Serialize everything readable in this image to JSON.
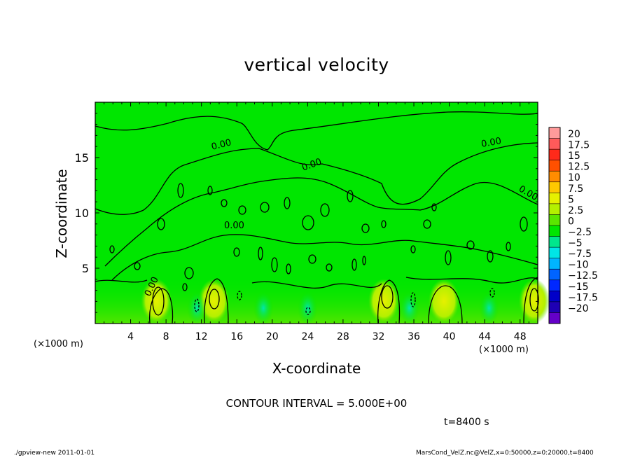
{
  "chart_data": {
    "type": "contour",
    "title": "vertical velocity",
    "xlabel": "X-coordinate",
    "ylabel": "Z-coordinate",
    "x_unit": "(×1000 m)",
    "xlim": [
      0,
      50
    ],
    "ylim": [
      0,
      20
    ],
    "xticks": [
      4,
      8,
      12,
      16,
      20,
      24,
      28,
      32,
      36,
      40,
      44,
      48
    ],
    "yticks": [
      5,
      10,
      15
    ],
    "contour_interval_label": "CONTOUR INTERVAL = 5.000E+00",
    "contour_labels": [
      "0.00",
      "0.00",
      "0.00",
      "0.00",
      "0.00",
      "0.00"
    ],
    "time_label": "t=8400 s",
    "colorbar": {
      "levels": [
        "20",
        "17.5",
        "15",
        "12.5",
        "10",
        "7.5",
        "5",
        "2.5",
        "0",
        "−2.5",
        "−5",
        "−7.5",
        "−10",
        "−12.5",
        "−15",
        "−17.5",
        "−20"
      ],
      "colors": [
        "#ff9a9a",
        "#ff5a5a",
        "#ff2a1a",
        "#ff5000",
        "#ff8c00",
        "#ffc800",
        "#e6f000",
        "#b4f000",
        "#5ae600",
        "#00e600",
        "#00e68c",
        "#00e6e6",
        "#00b4ff",
        "#0064ff",
        "#0028ff",
        "#0000c8",
        "#1e00b4",
        "#6400c8"
      ]
    },
    "updraft_cores_x": [
      6.9,
      13.4,
      32.6,
      39.4,
      49.6
    ]
  },
  "footer": {
    "left": "./gpview-new   2011-01-01",
    "right": "MarsCond_VelZ.nc@VelZ,x=0:50000,z=0:20000,t=8400"
  }
}
